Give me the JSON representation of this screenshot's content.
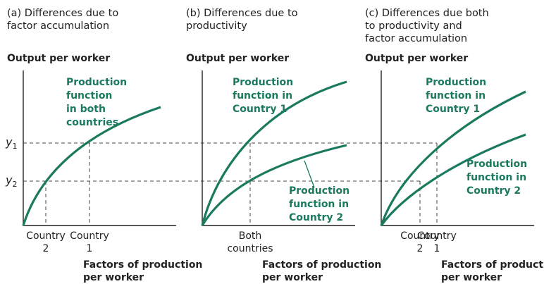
{
  "panels": [
    {
      "title": [
        "(a) Differences due to",
        "factor accumulation"
      ],
      "y_axis_label": "Output per worker",
      "x_axis_label": [
        "Factors of production",
        "per worker"
      ],
      "curve_labels": [
        [
          "Production",
          "function",
          "in both",
          "countries"
        ]
      ],
      "x_ticks": [
        [
          "Country",
          "2"
        ],
        [
          "Country",
          "1"
        ]
      ],
      "y_labels": [
        {
          "text": "y",
          "sub": "1"
        },
        {
          "text": "y",
          "sub": "2"
        }
      ]
    },
    {
      "title": [
        "(b) Differences due to",
        "productivity"
      ],
      "y_axis_label": "Output per worker",
      "x_axis_label": [
        "Factors of production",
        "per worker"
      ],
      "curve_labels": [
        [
          "Production",
          "function in",
          "Country 1"
        ],
        [
          "Production",
          "function in",
          "Country 2"
        ]
      ],
      "x_ticks": [
        [
          "Both",
          "countries"
        ]
      ]
    },
    {
      "title": [
        "(c) Differences due both",
        "to productivity and",
        "factor accumulation"
      ],
      "y_axis_label": "Output per worker",
      "x_axis_label": [
        "Factors of production",
        "per worker"
      ],
      "curve_labels": [
        [
          "Production",
          "function in",
          "Country 1"
        ],
        [
          "Production",
          "function in",
          "Country 2"
        ]
      ],
      "x_ticks": [
        [
          "Country",
          "2"
        ],
        [
          "Country",
          "1"
        ]
      ]
    }
  ]
}
